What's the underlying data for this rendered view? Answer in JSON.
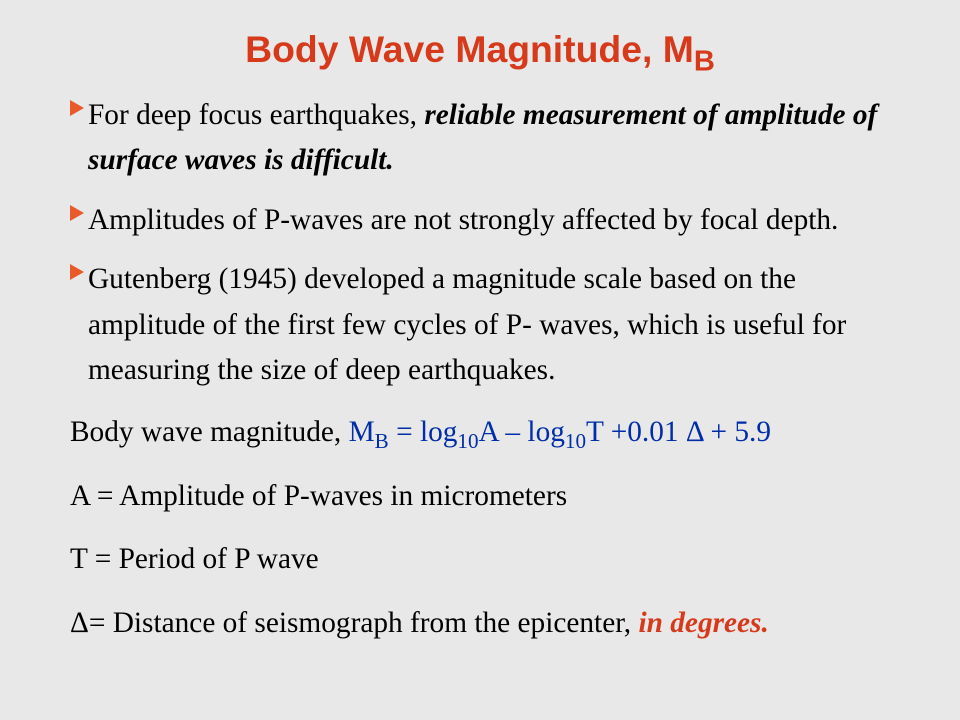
{
  "title": {
    "main": "Body Wave Magnitude, M",
    "subscript": "B",
    "color": "#d63a1a",
    "font_family": "Arial",
    "font_size_pt": 28
  },
  "body": {
    "font_family": "Times New Roman",
    "font_size_pt": 22,
    "text_color": "#000000",
    "bullet_color": "#e85a2a"
  },
  "bullets": [
    {
      "pre": "For deep focus earthquakes, ",
      "emph": "reliable measurement of amplitude of surface waves is difficult.",
      "post": ""
    },
    {
      "pre": "Amplitudes of P-waves are not strongly affected by focal depth.",
      "emph": "",
      "post": ""
    },
    {
      "pre": "Gutenberg (1945) developed a magnitude scale based on the amplitude of the first few cycles of P- waves, which is useful for measuring the size of deep earthquakes.",
      "emph": "",
      "post": ""
    }
  ],
  "formula": {
    "lead": "Body wave magnitude, ",
    "sym_pre": "M",
    "sym_sub": "B",
    "expr_a": " = log",
    "sub_a": "10",
    "expr_b": "A – log",
    "sub_b": "10",
    "expr_c": "T +0.01 Δ + 5.9",
    "color": "#002ea8"
  },
  "defs": {
    "A": "A = Amplitude of P-waves in micrometers",
    "T": "T = Period of P wave",
    "D_pre": "Δ= Distance of seismograph from the epicenter, ",
    "D_emph": "in degrees."
  },
  "background_color": "#e8e8e8"
}
